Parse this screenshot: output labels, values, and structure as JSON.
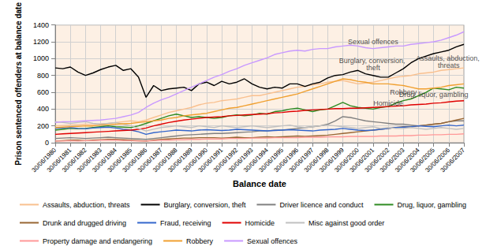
{
  "chart_data": {
    "type": "line",
    "x_label": "Balance date",
    "y_label": "Prison sentenced offenders at balance date",
    "ylim": [
      0,
      1400
    ],
    "yticks": [
      0,
      200,
      400,
      600,
      800,
      1000,
      1200,
      1400
    ],
    "grid": true,
    "legend": "bottom",
    "categories": [
      "30/06/1980",
      null,
      "30/06/1981",
      null,
      "30/06/1982",
      null,
      "30/06/1983",
      null,
      "30/06/1984",
      null,
      "30/06/1985",
      null,
      "30/06/1986",
      null,
      "30/06/1987",
      null,
      "30/06/1988",
      null,
      "30/06/1989",
      null,
      "30/06/1990",
      null,
      "30/06/1991",
      null,
      "30/06/1992",
      null,
      "30/06/1993",
      null,
      "30/06/1994",
      null,
      "30/06/1995",
      null,
      "30/06/1996",
      null,
      "30/06/1997",
      null,
      "30/06/1998",
      null,
      "30/06/1999",
      null,
      "30/06/2000",
      null,
      "30/06/2001",
      null,
      "30/06/2002",
      null,
      "30/06/2003",
      null,
      "30/06/2004",
      null,
      "30/06/2005",
      null,
      "30/06/2006",
      null,
      "30/06/2007"
    ],
    "series": [
      {
        "name": "Assaults, abduction, threats",
        "color": "#f9c08f",
        "values": [
          200,
          205,
          210,
          215,
          220,
          215,
          225,
          230,
          240,
          250,
          260,
          250,
          270,
          300,
          330,
          360,
          380,
          400,
          420,
          450,
          470,
          480,
          500,
          510,
          520,
          540,
          560,
          560,
          580,
          600,
          620,
          640,
          660,
          670,
          690,
          700,
          720,
          730,
          740,
          720,
          700,
          710,
          720,
          740,
          760,
          780,
          790,
          800,
          820,
          830,
          840,
          860,
          870,
          880,
          890
        ]
      },
      {
        "name": "Burglary, conversion, theft",
        "color": "#000000",
        "values": [
          890,
          880,
          900,
          840,
          800,
          830,
          870,
          900,
          920,
          860,
          880,
          780,
          540,
          680,
          620,
          640,
          650,
          660,
          620,
          700,
          720,
          680,
          730,
          700,
          720,
          760,
          700,
          660,
          640,
          660,
          650,
          700,
          700,
          670,
          700,
          720,
          770,
          800,
          810,
          840,
          860,
          820,
          800,
          780,
          780,
          830,
          880,
          950,
          1000,
          1030,
          1060,
          1080,
          1100,
          1140,
          1170
        ]
      },
      {
        "name": "Driver licence and conduct",
        "color": "#808080",
        "values": [
          50,
          55,
          60,
          55,
          50,
          55,
          60,
          65,
          60,
          55,
          50,
          45,
          40,
          50,
          60,
          70,
          80,
          90,
          95,
          100,
          105,
          110,
          110,
          115,
          120,
          125,
          130,
          140,
          140,
          150,
          150,
          160,
          170,
          180,
          190,
          200,
          220,
          260,
          310,
          300,
          280,
          260,
          250,
          240,
          230,
          220,
          220,
          210,
          200,
          210,
          220,
          230,
          250,
          260,
          260
        ]
      },
      {
        "name": "Drug, liquor, gambling",
        "color": "#2e8b22",
        "values": [
          150,
          160,
          170,
          165,
          170,
          180,
          190,
          200,
          190,
          185,
          180,
          200,
          230,
          260,
          290,
          320,
          340,
          320,
          300,
          310,
          300,
          290,
          300,
          320,
          330,
          320,
          330,
          350,
          340,
          370,
          380,
          400,
          410,
          390,
          370,
          390,
          400,
          440,
          480,
          440,
          420,
          410,
          400,
          420,
          430,
          470,
          500,
          520,
          560,
          600,
          650,
          640,
          630,
          660,
          650
        ]
      },
      {
        "name": "Drunk and drugged driving",
        "color": "#996633",
        "values": [
          20,
          25,
          30,
          30,
          25,
          30,
          35,
          40,
          40,
          35,
          30,
          25,
          20,
          30,
          40,
          45,
          50,
          55,
          55,
          60,
          60,
          60,
          55,
          60,
          65,
          60,
          60,
          65,
          70,
          65,
          70,
          75,
          80,
          75,
          80,
          85,
          90,
          100,
          110,
          120,
          130,
          140,
          150,
          160,
          170,
          180,
          190,
          190,
          200,
          210,
          220,
          230,
          250,
          270,
          290
        ]
      },
      {
        "name": "Fraud, receiving",
        "color": "#3366cc",
        "values": [
          170,
          175,
          180,
          170,
          165,
          175,
          180,
          185,
          175,
          160,
          150,
          130,
          100,
          120,
          130,
          140,
          150,
          145,
          140,
          150,
          155,
          150,
          145,
          150,
          160,
          155,
          150,
          145,
          140,
          145,
          150,
          155,
          150,
          145,
          140,
          150,
          155,
          160,
          170,
          160,
          150,
          145,
          150,
          160,
          170,
          180,
          185,
          190,
          200,
          195,
          190,
          200,
          210,
          200,
          210
        ]
      },
      {
        "name": "Homicide",
        "color": "#e00000",
        "values": [
          100,
          105,
          110,
          115,
          120,
          125,
          130,
          135,
          140,
          145,
          150,
          160,
          175,
          200,
          220,
          240,
          255,
          270,
          280,
          290,
          300,
          305,
          310,
          320,
          325,
          330,
          335,
          340,
          345,
          355,
          360,
          370,
          375,
          385,
          390,
          395,
          400,
          405,
          405,
          410,
          410,
          415,
          420,
          425,
          430,
          435,
          440,
          450,
          455,
          460,
          470,
          475,
          485,
          495,
          500
        ]
      },
      {
        "name": "Misc against good order",
        "color": "#c0c0c0",
        "values": [
          250,
          240,
          230,
          240,
          250,
          230,
          220,
          230,
          240,
          220,
          200,
          170,
          140,
          160,
          180,
          190,
          200,
          190,
          180,
          200,
          190,
          180,
          200,
          190,
          180,
          190,
          200,
          190,
          180,
          190,
          200,
          210,
          190,
          180,
          190,
          200,
          210,
          200,
          190,
          180,
          170,
          180,
          190,
          170,
          180,
          170,
          170,
          180,
          170,
          160,
          170,
          180,
          170,
          160,
          170
        ]
      },
      {
        "name": "Property damage and endangering",
        "color": "#ff9999",
        "values": [
          20,
          20,
          25,
          20,
          25,
          25,
          30,
          30,
          30,
          25,
          25,
          20,
          20,
          25,
          30,
          30,
          35,
          35,
          40,
          40,
          45,
          45,
          45,
          50,
          50,
          50,
          55,
          55,
          55,
          60,
          60,
          60,
          60,
          65,
          65,
          65,
          70,
          70,
          70,
          75,
          75,
          75,
          75,
          80,
          80,
          80,
          85,
          85,
          90,
          90,
          95,
          95,
          100,
          100,
          105
        ]
      },
      {
        "name": "Robbery",
        "color": "#f0a030",
        "values": [
          180,
          185,
          190,
          195,
          200,
          200,
          210,
          215,
          220,
          225,
          230,
          240,
          250,
          260,
          270,
          290,
          300,
          320,
          330,
          340,
          350,
          370,
          390,
          410,
          420,
          440,
          460,
          480,
          500,
          520,
          540,
          560,
          580,
          610,
          640,
          670,
          700,
          730,
          760,
          750,
          730,
          720,
          700,
          700,
          700,
          690,
          680,
          660,
          640,
          640,
          650,
          660,
          680,
          690,
          700
        ]
      },
      {
        "name": "Sexual offences",
        "color": "#c899ff",
        "values": [
          240,
          250,
          250,
          255,
          260,
          265,
          270,
          280,
          290,
          310,
          330,
          360,
          420,
          470,
          510,
          540,
          580,
          620,
          660,
          700,
          740,
          780,
          810,
          850,
          880,
          920,
          950,
          980,
          1010,
          1050,
          1070,
          1090,
          1100,
          1090,
          1110,
          1120,
          1120,
          1140,
          1150,
          1160,
          1150,
          1130,
          1120,
          1130,
          1140,
          1150,
          1150,
          1170,
          1180,
          1190,
          1200,
          1220,
          1250,
          1280,
          1320
        ]
      }
    ],
    "annotations": [
      {
        "text": "Sexual offences",
        "x": "30/06/2001",
        "y": 1200
      },
      {
        "text": "Burglary, conversion, theft",
        "x": "30/06/2001",
        "y": 930
      },
      {
        "text": "Assaults, abduction, threats",
        "x": "30/06/2006",
        "y": 960
      },
      {
        "text": "Robbery",
        "x": "30/06/2003",
        "y": 600
      },
      {
        "text": "Homicide",
        "x": "30/06/2002",
        "y": 470
      },
      {
        "text": "Drug, liquor, gambling",
        "x": "30/06/2005",
        "y": 570
      }
    ]
  }
}
